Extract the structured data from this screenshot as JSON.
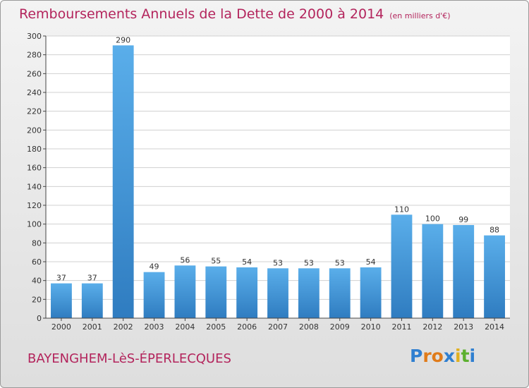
{
  "chart_data": {
    "type": "bar",
    "title": "Remboursements Annuels de la Dette de 2000 à 2014",
    "subtitle": "(en milliers d'€)",
    "categories": [
      "2000",
      "2001",
      "2002",
      "2003",
      "2004",
      "2005",
      "2006",
      "2007",
      "2008",
      "2009",
      "2010",
      "2011",
      "2012",
      "2013",
      "2014"
    ],
    "values": [
      37,
      37,
      290,
      49,
      56,
      55,
      54,
      53,
      53,
      53,
      54,
      110,
      100,
      99,
      88
    ],
    "ylim": [
      0,
      300
    ],
    "yticks": [
      0,
      20,
      40,
      60,
      80,
      100,
      120,
      140,
      160,
      180,
      200,
      220,
      240,
      260,
      280,
      300
    ],
    "grid": true,
    "bar_color": "#4a9edf"
  },
  "footer": {
    "commune": "BAYENGHEM-LèS-ÉPERLECQUES",
    "logo_letters": [
      "P",
      "r",
      "o",
      "x",
      "i",
      "t",
      "i"
    ],
    "logo_colors": [
      "#2f7fd0",
      "#e07b1a",
      "#e07b1a",
      "#2f7fd0",
      "#e0b020",
      "#5cb030",
      "#2f7fd0"
    ]
  }
}
